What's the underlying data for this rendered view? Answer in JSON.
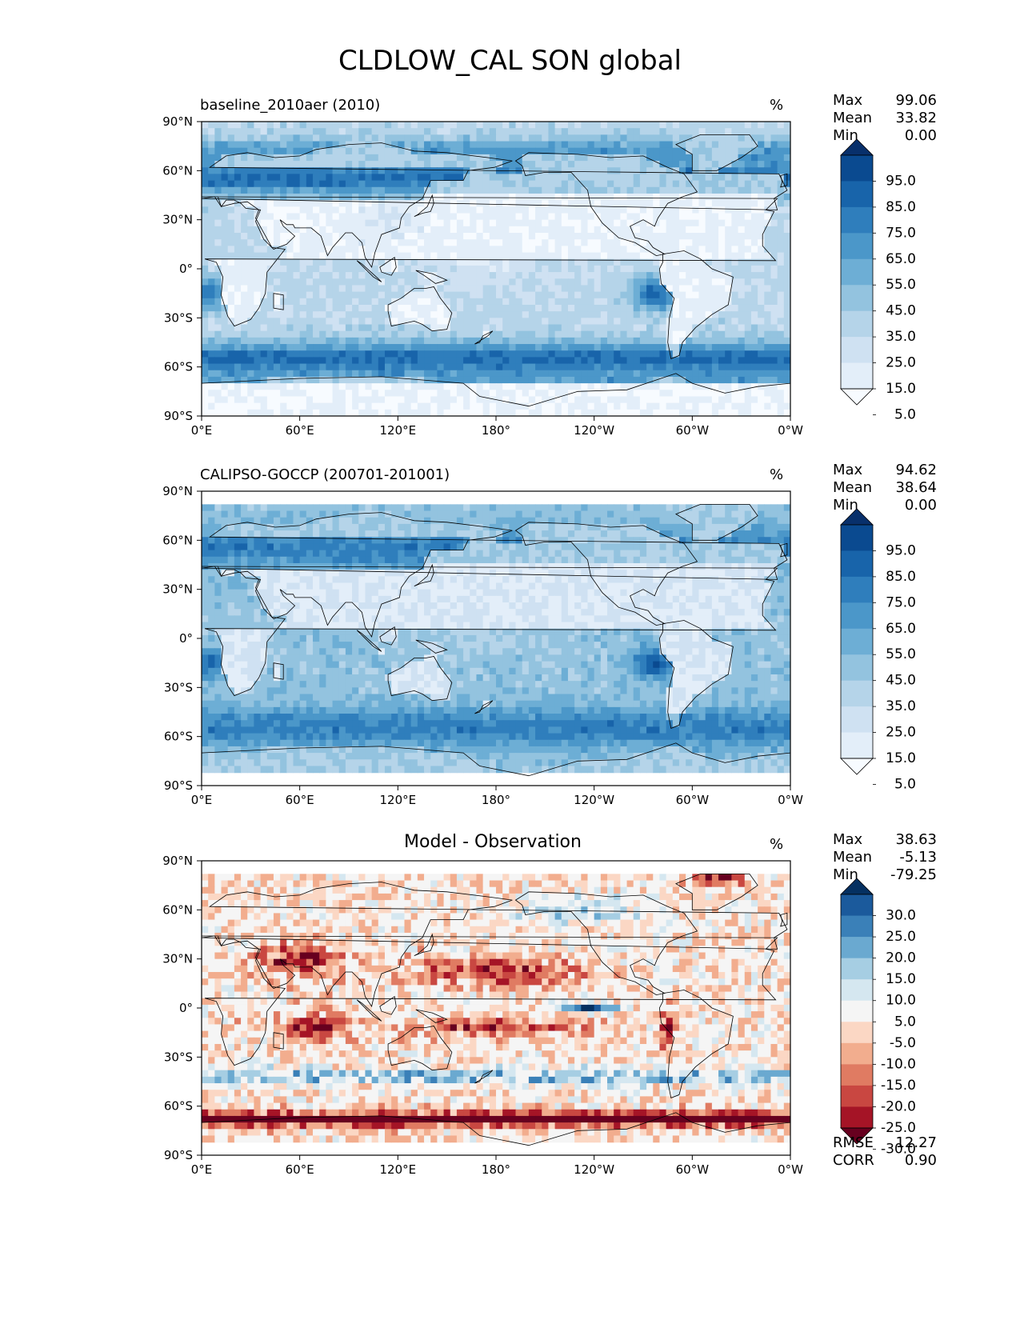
{
  "title": "CLDLOW_CAL SON global",
  "chart_data": [
    {
      "type": "heatmap",
      "map_projection": "PlateCarree",
      "title": "baseline_2010aer (2010)",
      "units": "%",
      "stats": [
        {
          "label": "Max",
          "value": "99.06"
        },
        {
          "label": "Mean",
          "value": "33.82"
        },
        {
          "label": "Min",
          "value": "0.00"
        }
      ],
      "colormap": "Blues",
      "colorbar_levels": [
        0,
        5,
        15,
        25,
        35,
        45,
        55,
        65,
        75,
        85,
        95,
        100
      ],
      "colorbar_ticks": [
        "95.0",
        "85.0",
        "75.0",
        "65.0",
        "55.0",
        "45.0",
        "35.0",
        "25.0",
        "15.0",
        "5.0"
      ],
      "colors": [
        "#f7fbff",
        "#e3eef9",
        "#cfe1f2",
        "#b5d4e9",
        "#93c3df",
        "#6daed5",
        "#4b97c9",
        "#2f7ebc",
        "#1864aa",
        "#0a4a90",
        "#08306b"
      ],
      "x_ticks": [
        "0°E",
        "60°E",
        "120°E",
        "180°",
        "120°W",
        "60°W",
        "0°W"
      ],
      "y_ticks": [
        "90°N",
        "60°N",
        "30°N",
        "0°",
        "30°S",
        "60°S",
        "90°S"
      ],
      "xlim": [
        0,
        360
      ],
      "ylim": [
        -90,
        90
      ],
      "legend_position": "right"
    },
    {
      "type": "heatmap",
      "map_projection": "PlateCarree",
      "title": "CALIPSO-GOCCP (200701-201001)",
      "units": "%",
      "stats": [
        {
          "label": "Max",
          "value": "94.62"
        },
        {
          "label": "Mean",
          "value": "38.64"
        },
        {
          "label": "Min",
          "value": "0.00"
        }
      ],
      "colormap": "Blues",
      "colorbar_levels": [
        0,
        5,
        15,
        25,
        35,
        45,
        55,
        65,
        75,
        85,
        95,
        100
      ],
      "colorbar_ticks": [
        "95.0",
        "85.0",
        "75.0",
        "65.0",
        "55.0",
        "45.0",
        "35.0",
        "25.0",
        "15.0",
        "5.0"
      ],
      "colors": [
        "#f7fbff",
        "#e3eef9",
        "#cfe1f2",
        "#b5d4e9",
        "#93c3df",
        "#6daed5",
        "#4b97c9",
        "#2f7ebc",
        "#1864aa",
        "#0a4a90",
        "#08306b"
      ],
      "x_ticks": [
        "0°E",
        "60°E",
        "120°E",
        "180°",
        "120°W",
        "60°W",
        "0°W"
      ],
      "y_ticks": [
        "90°N",
        "60°N",
        "30°N",
        "0°",
        "30°S",
        "60°S",
        "90°S"
      ],
      "xlim": [
        0,
        360
      ],
      "ylim": [
        -90,
        90
      ],
      "data_lat_range": [
        -82,
        82
      ],
      "legend_position": "right"
    },
    {
      "type": "heatmap",
      "map_projection": "PlateCarree",
      "title": "Model - Observation",
      "units": "%",
      "stats": [
        {
          "label": "Max",
          "value": "38.63"
        },
        {
          "label": "Mean",
          "value": "-5.13"
        },
        {
          "label": "Min",
          "value": "-79.25"
        }
      ],
      "extra_stats": [
        {
          "label": "RMSE",
          "value": "12.27"
        },
        {
          "label": "CORR",
          "value": "0.90"
        }
      ],
      "colormap": "RdBu",
      "colorbar_levels": [
        -35,
        -30,
        -25,
        -20,
        -15,
        -10,
        -5,
        5,
        10,
        15,
        20,
        25,
        30,
        35
      ],
      "colorbar_ticks": [
        "30.0",
        "25.0",
        "20.0",
        "15.0",
        "10.0",
        "5.0",
        "-5.0",
        "-10.0",
        "-15.0",
        "-20.0",
        "-25.0",
        "-30.0"
      ],
      "colors": [
        "#67001f",
        "#a51426",
        "#c94741",
        "#e07b62",
        "#f2ad8e",
        "#fbd7c4",
        "#f5f5f5",
        "#d5e7f0",
        "#a6cee3",
        "#6aa9d0",
        "#3a80b8",
        "#1b5a9c",
        "#053061"
      ],
      "x_ticks": [
        "0°E",
        "60°E",
        "120°E",
        "180°",
        "120°W",
        "60°W",
        "0°W"
      ],
      "y_ticks": [
        "90°N",
        "60°N",
        "30°N",
        "0°",
        "30°S",
        "60°S",
        "90°S"
      ],
      "xlim": [
        0,
        360
      ],
      "ylim": [
        -90,
        90
      ],
      "data_lat_range": [
        -82,
        82
      ],
      "legend_position": "right"
    }
  ]
}
